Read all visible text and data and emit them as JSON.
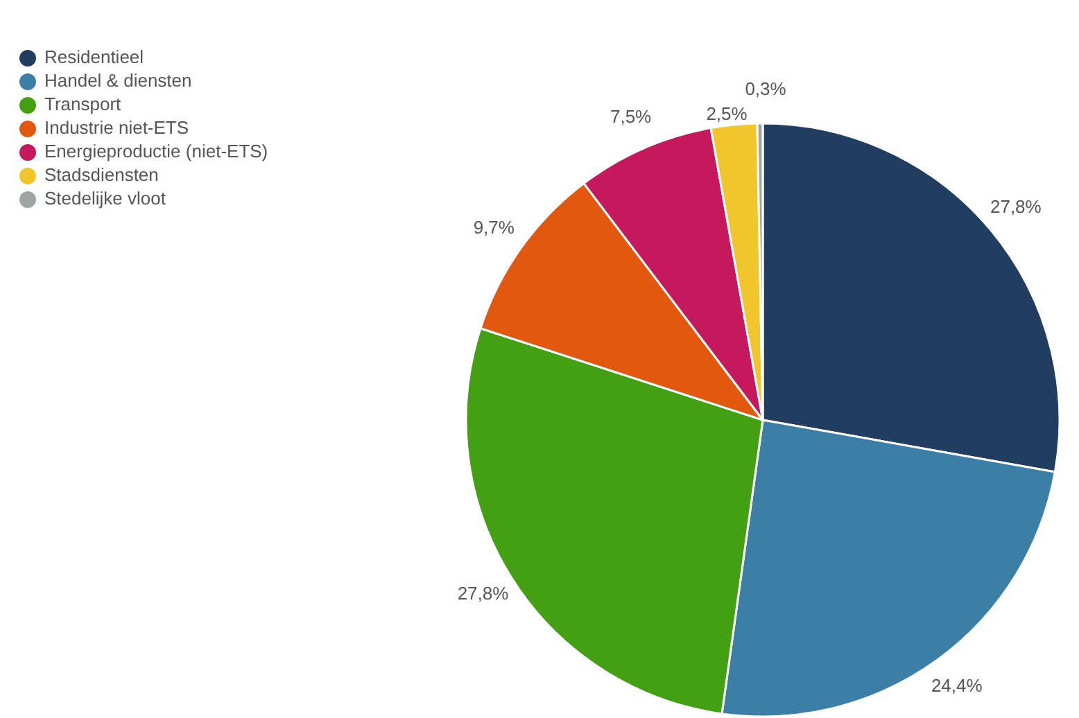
{
  "chart_data": {
    "type": "pie",
    "categories": [
      "Residentieel",
      "Handel & diensten",
      "Transport",
      "Industrie niet-ETS",
      "Energieproductie (niet-ETS)",
      "Stadsdiensten",
      "Stedelijke vloot"
    ],
    "values": [
      27.8,
      24.4,
      27.8,
      9.7,
      7.5,
      2.5,
      0.3
    ],
    "colors": [
      "#213d5f",
      "#3b7ea6",
      "#42a012",
      "#e2580f",
      "#c6185c",
      "#f1c62c",
      "#9ea3a6"
    ],
    "value_labels": [
      "27,8%",
      "24,4%",
      "27,8%",
      "9,7%",
      "7,5%",
      "2,5%",
      "0,3%"
    ],
    "legend": "top left"
  }
}
